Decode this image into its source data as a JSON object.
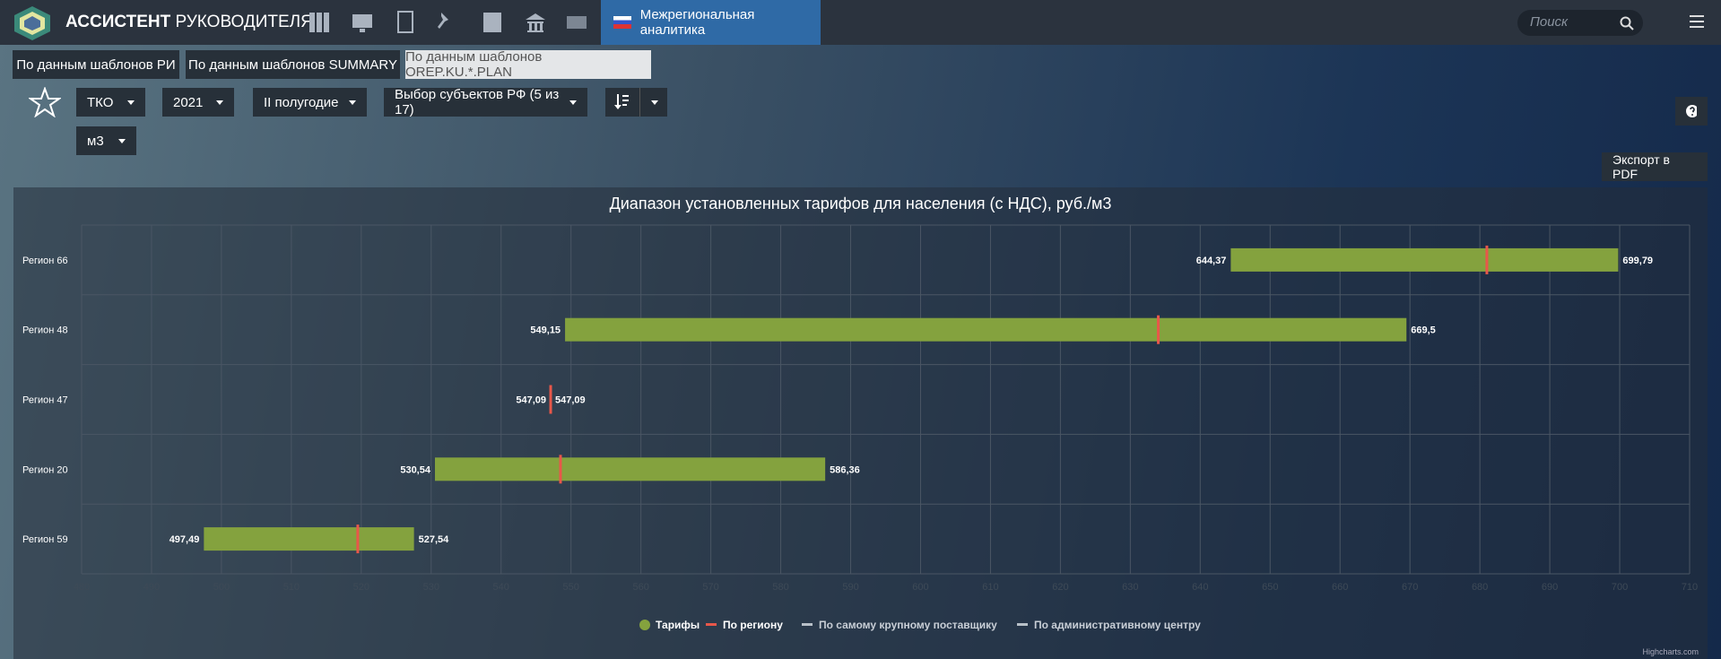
{
  "header": {
    "brand_bold": "АССИСТЕНТ",
    "brand_rest": "РУКОВОДИТЕЛЯ",
    "active_nav": "Межрегиональная аналитика",
    "search_placeholder": "Поиск"
  },
  "tabs": [
    "По данным шаблонов РИ",
    "По данным шаблонов SUMMARY",
    "По данным шаблонов OREP.KU.*.PLAN"
  ],
  "filters": [
    "ТКО",
    "2021",
    "II полугодие",
    "Выбор субъектов РФ (5 из 17)"
  ],
  "unit_filter": "м3",
  "export_button": "Экспорт в PDF",
  "chart_data": {
    "type": "range",
    "title": "Диапазон установленных тарифов для населения (с НДС), руб./м3",
    "categories": [
      "Регион 66",
      "Регион 48",
      "Регион 47",
      "Регион 20",
      "Регион 59"
    ],
    "xlim": [
      480,
      710
    ],
    "xticks": [
      480,
      490,
      500,
      510,
      520,
      530,
      540,
      550,
      560,
      570,
      580,
      590,
      600,
      610,
      620,
      630,
      640,
      650,
      660,
      670,
      680,
      690,
      700,
      710
    ],
    "grid": true,
    "series": [
      {
        "name": "Тарифы",
        "color": "#84a23e",
        "low": [
          644.37,
          549.15,
          547.09,
          530.54,
          497.49
        ],
        "high": [
          699.79,
          669.5,
          547.09,
          586.36,
          527.54
        ],
        "low_labels": [
          "644,37",
          "549,15",
          "547,09",
          "530,54",
          "497,49"
        ],
        "high_labels": [
          "699,79",
          "669,5",
          "547,09",
          "586,36",
          "527,54"
        ]
      },
      {
        "name": "По региону",
        "color": "#e8574a",
        "values": [
          681,
          634,
          547.09,
          548.5,
          519.5
        ]
      },
      {
        "name": "По самому крупному поставщику",
        "color": "#b8c0c8",
        "values": [
          null,
          null,
          null,
          null,
          null
        ]
      },
      {
        "name": "По административному центру",
        "color": "#b8c0c8",
        "values": [
          null,
          null,
          null,
          null,
          null
        ]
      }
    ],
    "credit": "Highcharts.com"
  }
}
